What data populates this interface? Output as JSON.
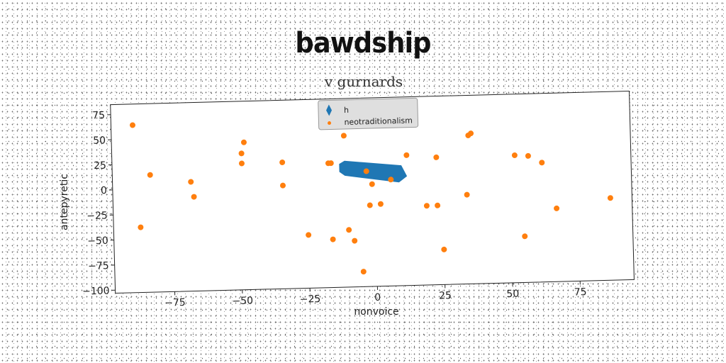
{
  "main_title": "bawdship",
  "chart_data": {
    "type": "scatter",
    "title": "v gurnards",
    "xlabel": "nonvoice",
    "ylabel": "antepyretic",
    "xlim": [
      -97,
      95
    ],
    "ylim": [
      -103,
      85
    ],
    "xticks": [
      -75,
      -50,
      -25,
      0,
      25,
      50,
      75
    ],
    "yticks": [
      -100,
      -75,
      -50,
      -25,
      0,
      25,
      50,
      75
    ],
    "xtick_labels": [
      "−75",
      "−50",
      "−25",
      "0",
      "25",
      "50",
      "75"
    ],
    "ytick_labels": [
      "−100",
      "−75",
      "−50",
      "−25",
      "0",
      "25",
      "50",
      "75"
    ],
    "grid": false,
    "legend_position": "top-center",
    "series": [
      {
        "name": "h",
        "kind": "area",
        "color": "#1f77b4",
        "polygon": [
          [
            -13,
            20
          ],
          [
            -11,
            23
          ],
          [
            10,
            17
          ],
          [
            12,
            6
          ],
          [
            9,
            0
          ],
          [
            -11,
            8
          ],
          [
            -13,
            12
          ]
        ]
      },
      {
        "name": "neotraditionalism",
        "kind": "points",
        "color": "#ff7f0e",
        "points": [
          [
            -89,
            64
          ],
          [
            -83,
            14
          ],
          [
            -87,
            -38
          ],
          [
            -68,
            6
          ],
          [
            -67,
            -9
          ],
          [
            -49,
            23
          ],
          [
            -49,
            33
          ],
          [
            -48,
            44
          ],
          [
            -34,
            23
          ],
          [
            -34,
            0
          ],
          [
            -25,
            -50
          ],
          [
            -17,
            21
          ],
          [
            -16,
            21
          ],
          [
            -16,
            -55
          ],
          [
            -11,
            48
          ],
          [
            -10,
            -46
          ],
          [
            -8,
            -57
          ],
          [
            -5,
            -88
          ],
          [
            -3,
            12
          ],
          [
            -2,
            -22
          ],
          [
            -1,
            -1
          ],
          [
            2,
            -21
          ],
          [
            6,
            3
          ],
          [
            12,
            27
          ],
          [
            19,
            -24
          ],
          [
            23,
            -24
          ],
          [
            23,
            24
          ],
          [
            25,
            -68
          ],
          [
            34,
            -14
          ],
          [
            35,
            45
          ],
          [
            36,
            47
          ],
          [
            52,
            24
          ],
          [
            55,
            -57
          ],
          [
            57,
            23
          ],
          [
            62,
            16
          ],
          [
            67,
            -30
          ],
          [
            87,
            -21
          ]
        ]
      }
    ]
  }
}
